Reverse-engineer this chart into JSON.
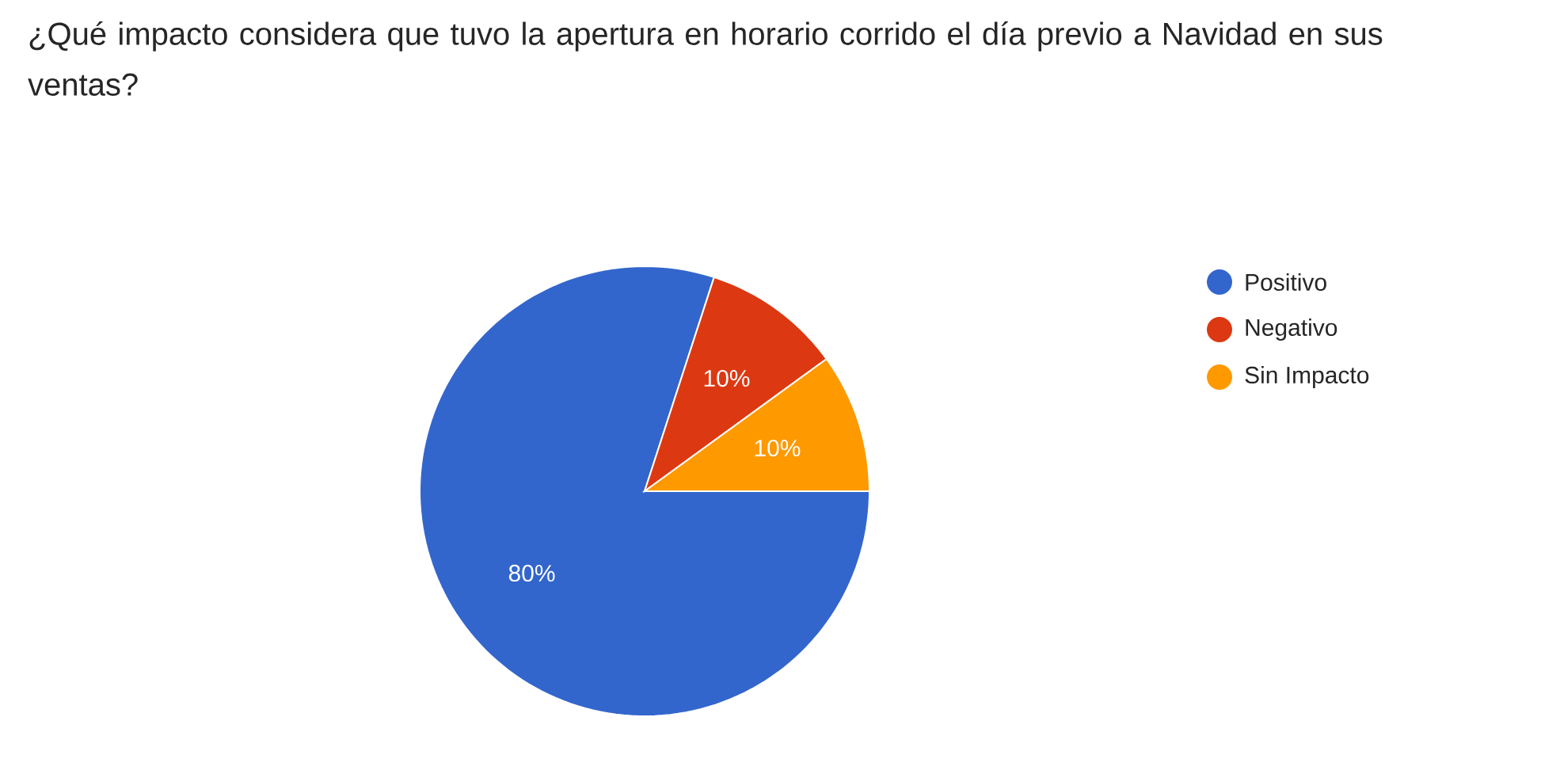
{
  "chart_data": {
    "type": "pie",
    "title": "¿Qué impacto considera que tuvo la apertura en horario corrido el día previo a Navidad en sus ventas?",
    "categories": [
      "Positivo",
      "Negativo",
      "Sin Impacto"
    ],
    "values": [
      80,
      10,
      10
    ],
    "colors": [
      "#3366cc",
      "#dc3912",
      "#ff9900"
    ],
    "value_labels": [
      "80%",
      "10%",
      "10%"
    ],
    "legend": "right"
  }
}
